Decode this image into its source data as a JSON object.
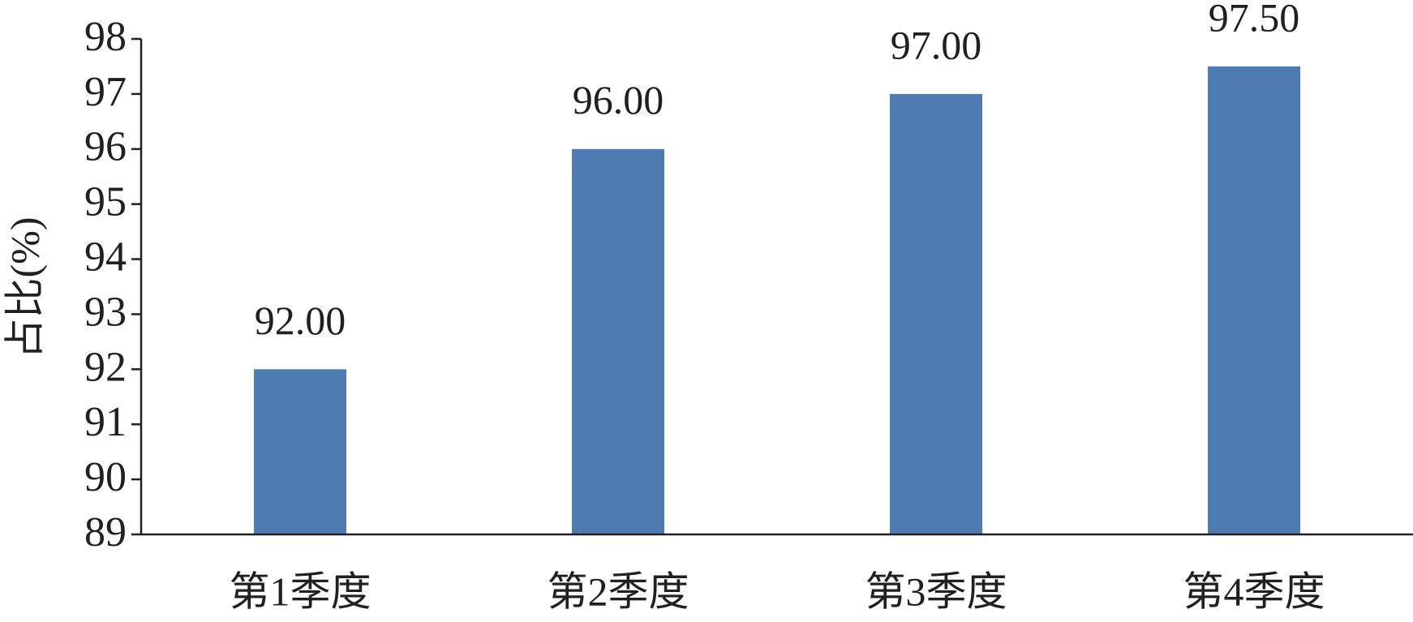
{
  "chart_data": {
    "type": "bar",
    "y_label": "占比(%)",
    "categories": [
      "第1季度",
      "第2季度",
      "第3季度",
      "第4季度"
    ],
    "values": [
      92,
      96,
      97,
      97.5
    ],
    "value_labels": [
      "92.00",
      "96.00",
      "97.00",
      "97.50"
    ],
    "color": "#4f7bb3",
    "ylim": [
      89,
      98
    ],
    "yticks": [
      89,
      90,
      91,
      92,
      93,
      94,
      95,
      96,
      97,
      98
    ],
    "grid": false
  }
}
